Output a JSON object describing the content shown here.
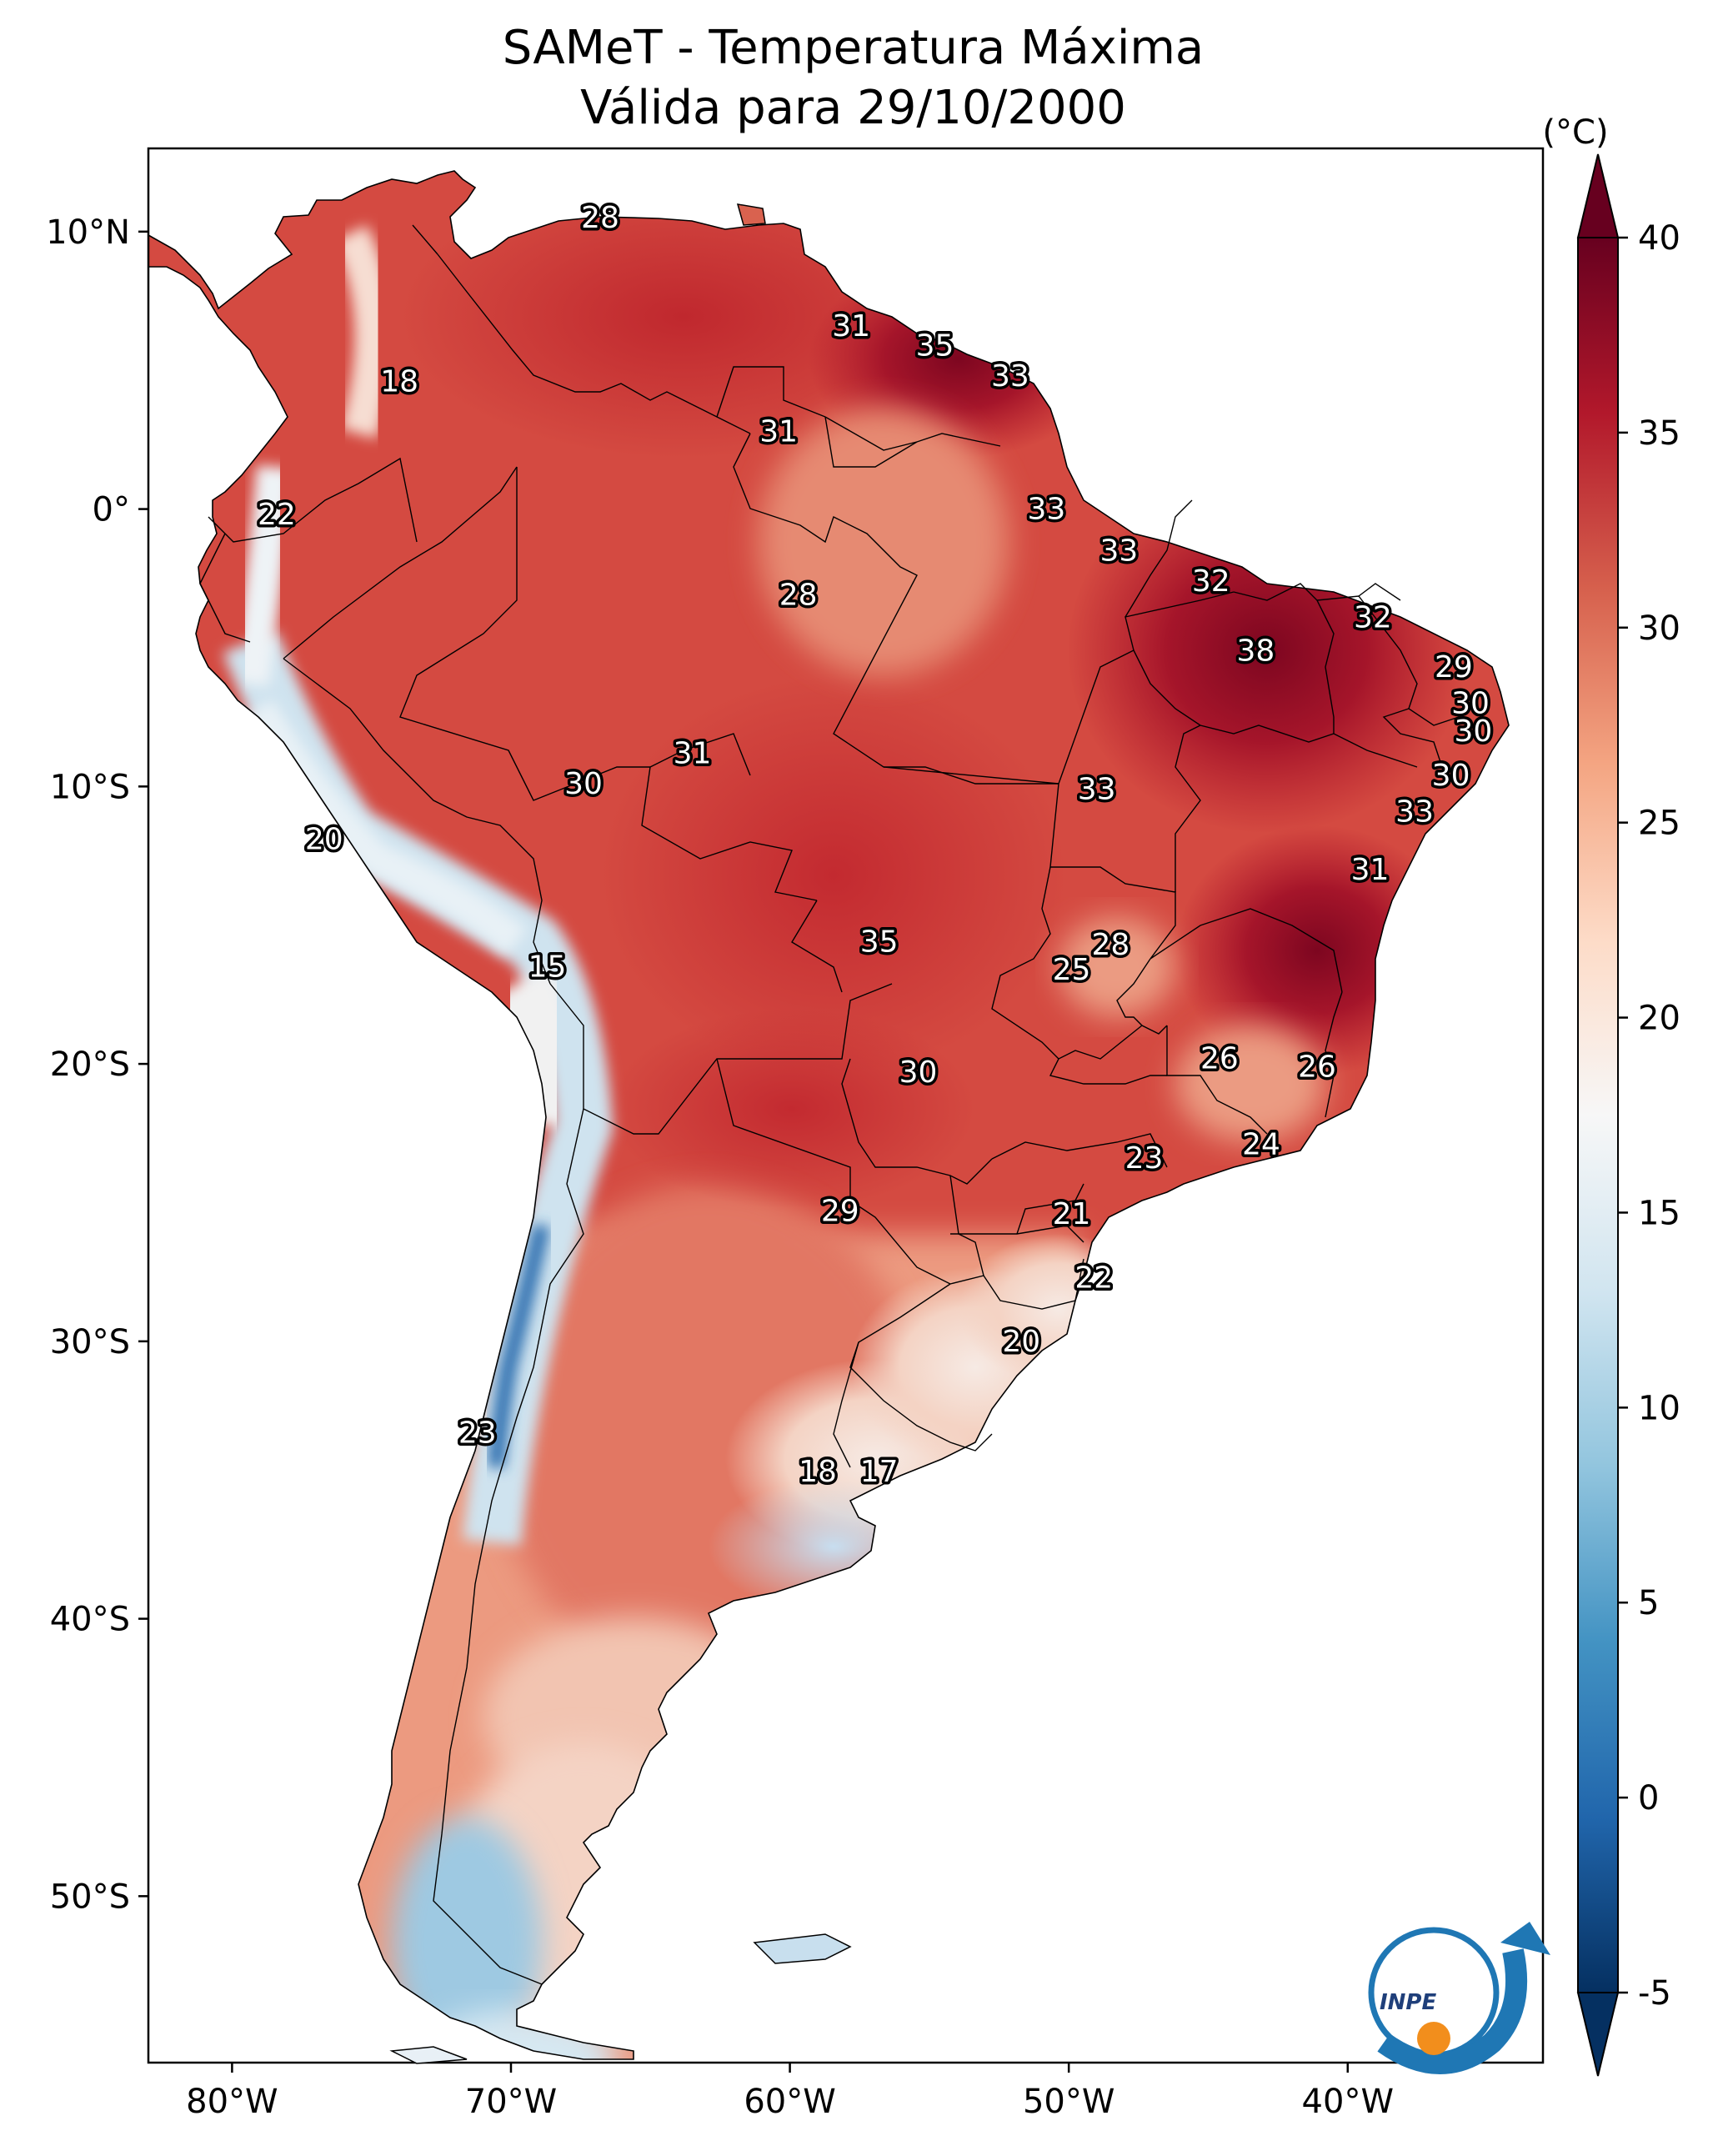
{
  "title": {
    "line1": "SAMeT - Temperatura Máxima",
    "line2": "Válida para 29/10/2000"
  },
  "map": {
    "region": "South America",
    "lon_range": [
      -83,
      -33
    ],
    "lat_range": [
      -56,
      13
    ],
    "lon_ticks": [
      "80°W",
      "70°W",
      "60°W",
      "50°W",
      "40°W"
    ],
    "lat_ticks": [
      "10°N",
      "0°",
      "10°S",
      "20°S",
      "30°S",
      "40°S",
      "50°S"
    ]
  },
  "colorbar": {
    "unit": "(°C)",
    "min": -5,
    "max": 40,
    "ticks": [
      "40",
      "35",
      "30",
      "25",
      "20",
      "15",
      "10",
      "5",
      "0",
      "-5"
    ],
    "colormap": "RdBu_r",
    "stops": [
      "#053061",
      "#2166ac",
      "#4393c3",
      "#92c5de",
      "#d1e5f0",
      "#f7f7f7",
      "#fddbc7",
      "#f4a582",
      "#d6604d",
      "#b2182b",
      "#67001f"
    ]
  },
  "contour_labels": [
    {
      "text": "28",
      "lon": -66.8,
      "lat": 10.5
    },
    {
      "text": "18",
      "lon": -74.0,
      "lat": 4.6
    },
    {
      "text": "31",
      "lon": -57.8,
      "lat": 6.6
    },
    {
      "text": "35",
      "lon": -54.8,
      "lat": 5.9
    },
    {
      "text": "33",
      "lon": -52.1,
      "lat": 4.8
    },
    {
      "text": "31",
      "lon": -60.4,
      "lat": 2.8
    },
    {
      "text": "22",
      "lon": -78.4,
      "lat": -0.2
    },
    {
      "text": "33",
      "lon": -50.8,
      "lat": 0.0
    },
    {
      "text": "33",
      "lon": -48.2,
      "lat": -1.5
    },
    {
      "text": "28",
      "lon": -59.7,
      "lat": -3.1
    },
    {
      "text": "32",
      "lon": -44.9,
      "lat": -2.6
    },
    {
      "text": "32",
      "lon": -39.1,
      "lat": -3.9
    },
    {
      "text": "38",
      "lon": -43.3,
      "lat": -5.1
    },
    {
      "text": "29",
      "lon": -36.2,
      "lat": -5.7
    },
    {
      "text": "30",
      "lon": -35.6,
      "lat": -7.0
    },
    {
      "text": "30",
      "lon": -35.5,
      "lat": -8.0
    },
    {
      "text": "31",
      "lon": -63.5,
      "lat": -8.8
    },
    {
      "text": "30",
      "lon": -67.4,
      "lat": -9.9
    },
    {
      "text": "33",
      "lon": -49.0,
      "lat": -10.1
    },
    {
      "text": "30",
      "lon": -36.3,
      "lat": -9.6
    },
    {
      "text": "33",
      "lon": -37.6,
      "lat": -10.9
    },
    {
      "text": "20",
      "lon": -76.7,
      "lat": -11.9
    },
    {
      "text": "31",
      "lon": -39.2,
      "lat": -13.0
    },
    {
      "text": "35",
      "lon": -56.8,
      "lat": -15.6
    },
    {
      "text": "28",
      "lon": -48.5,
      "lat": -15.7
    },
    {
      "text": "25",
      "lon": -49.9,
      "lat": -16.6
    },
    {
      "text": "15",
      "lon": -68.7,
      "lat": -16.5
    },
    {
      "text": "26",
      "lon": -44.6,
      "lat": -19.8
    },
    {
      "text": "26",
      "lon": -41.1,
      "lat": -20.1
    },
    {
      "text": "30",
      "lon": -55.4,
      "lat": -20.3
    },
    {
      "text": "24",
      "lon": -43.1,
      "lat": -22.9
    },
    {
      "text": "23",
      "lon": -47.3,
      "lat": -23.4
    },
    {
      "text": "21",
      "lon": -49.9,
      "lat": -25.4
    },
    {
      "text": "29",
      "lon": -58.2,
      "lat": -25.3
    },
    {
      "text": "22",
      "lon": -49.1,
      "lat": -27.7
    },
    {
      "text": "20",
      "lon": -51.7,
      "lat": -30.0
    },
    {
      "text": "23",
      "lon": -71.2,
      "lat": -33.3
    },
    {
      "text": "18",
      "lon": -59.0,
      "lat": -34.7
    },
    {
      "text": "17",
      "lon": -56.8,
      "lat": -34.7
    }
  ],
  "logo": {
    "text": "INPE"
  }
}
